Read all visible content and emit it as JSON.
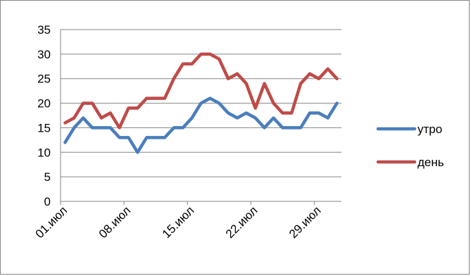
{
  "chart_data": {
    "type": "line",
    "title": "",
    "xlabel": "",
    "ylabel": "",
    "x": [
      "01.июл",
      "02.июл",
      "03.июл",
      "04.июл",
      "05.июл",
      "06.июл",
      "07.июл",
      "08.июл",
      "09.июл",
      "10.июл",
      "11.июл",
      "12.июл",
      "13.июл",
      "14.июл",
      "15.июл",
      "16.июл",
      "17.июл",
      "18.июл",
      "19.июл",
      "20.июл",
      "21.июл",
      "22.июл",
      "23.июл",
      "24.июл",
      "25.июл",
      "26.июл",
      "27.июл",
      "28.июл",
      "29.июл",
      "30.июл",
      "31.июл"
    ],
    "xtick_labels": [
      "01.июл",
      "08.июл",
      "15.июл",
      "22.июл",
      "29.июл"
    ],
    "ylim": [
      0,
      35
    ],
    "yticks": [
      0,
      5,
      10,
      15,
      20,
      25,
      30,
      35
    ],
    "grid": "horizontal",
    "legend_position": "right",
    "series": [
      {
        "name": "утро",
        "color": "#4a7ebb",
        "values": [
          12,
          15,
          17,
          15,
          15,
          15,
          13,
          13,
          10,
          13,
          13,
          13,
          15,
          15,
          17,
          20,
          21,
          20,
          18,
          17,
          18,
          17,
          15,
          17,
          15,
          15,
          15,
          18,
          18,
          17,
          20
        ]
      },
      {
        "name": "день",
        "color": "#be4b48",
        "values": [
          16,
          17,
          20,
          20,
          17,
          18,
          15,
          19,
          19,
          21,
          21,
          21,
          25,
          28,
          28,
          30,
          30,
          29,
          25,
          26,
          24,
          19,
          24,
          20,
          18,
          18,
          24,
          26,
          25,
          27,
          25
        ]
      }
    ]
  }
}
